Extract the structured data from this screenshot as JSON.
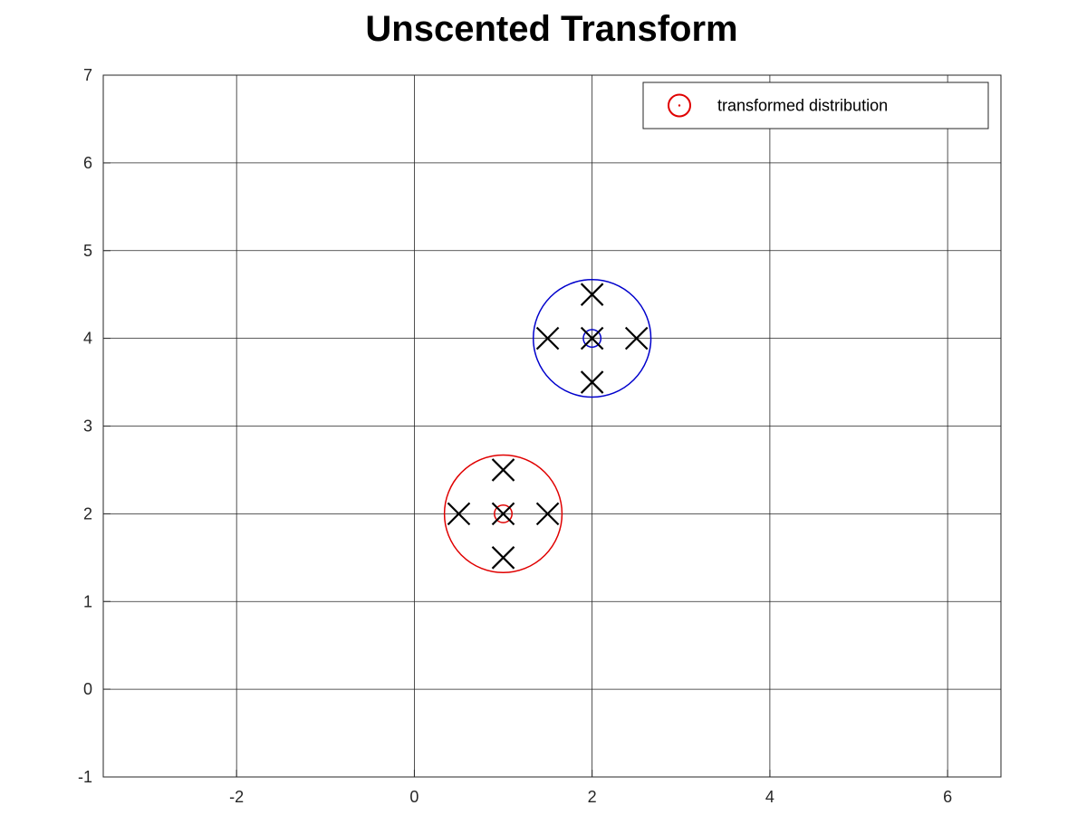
{
  "chart_data": {
    "type": "scatter",
    "title": "Unscented Transform",
    "xlabel": "",
    "ylabel": "",
    "xlim": [
      -3.5,
      6.6
    ],
    "ylim": [
      -1,
      7
    ],
    "xticks": [
      -2,
      0,
      2,
      4,
      6
    ],
    "yticks": [
      -1,
      0,
      1,
      2,
      3,
      4,
      5,
      6,
      7
    ],
    "grid": true,
    "legend": {
      "position": "top-right",
      "entries": [
        {
          "label": "transformed distribution",
          "marker": "circle-with-dot",
          "color": "#e00000"
        }
      ]
    },
    "series": [
      {
        "color": "#e00000",
        "marker": "circle",
        "center": [
          1,
          2
        ],
        "outer_radius": 0.67,
        "inner_radius": 0.1,
        "sigma_points": [
          [
            1,
            2
          ],
          [
            0.5,
            2
          ],
          [
            1.5,
            2
          ],
          [
            1,
            2.5
          ],
          [
            1,
            1.5
          ]
        ]
      },
      {
        "color": "#0000cc",
        "marker": "circle",
        "center": [
          2,
          4
        ],
        "outer_radius": 0.67,
        "inner_radius": 0.1,
        "sigma_points": [
          [
            2,
            4
          ],
          [
            1.5,
            4
          ],
          [
            2.5,
            4
          ],
          [
            2,
            4.5
          ],
          [
            2,
            3.5
          ]
        ]
      }
    ],
    "sigma_point_color": "#000000"
  }
}
